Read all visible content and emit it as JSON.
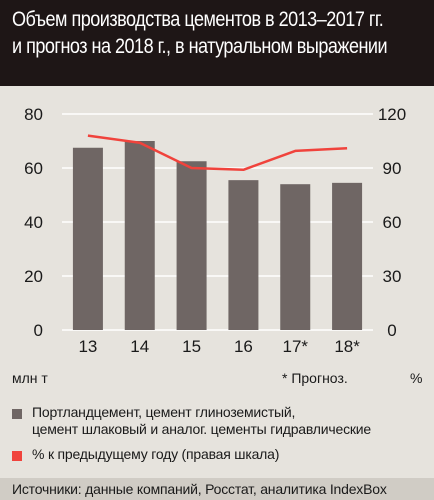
{
  "title_lines": [
    "Объем производства цементов в 2013–2017 гг.",
    "и прогноз на 2018 г., в натуральном выражении"
  ],
  "colors": {
    "bar": "#6f6664",
    "line": "#f0433c",
    "grid": "#ffffff",
    "text": "#1a1a1a"
  },
  "chart_data": {
    "type": "bar",
    "categories": [
      "13",
      "14",
      "15",
      "16",
      "17*",
      "18*"
    ],
    "series": [
      {
        "name": "Портландцемент, цемент глиноземистый, цемент шлаковый и аналог. цементы гидравлические",
        "type": "bar",
        "axis": "left",
        "values": [
          67.5,
          70,
          62.5,
          55.5,
          54,
          54.5
        ]
      },
      {
        "name": "% к предыдущему году (правая шкала)",
        "type": "line",
        "axis": "right",
        "values": [
          108,
          104,
          90,
          89,
          99.5,
          101
        ]
      }
    ],
    "ylabel": "млн т",
    "y2label": "%",
    "ylim": [
      0,
      80
    ],
    "y2lim": [
      0,
      120
    ],
    "yticks": [
      0,
      20,
      40,
      60,
      80
    ],
    "y2ticks": [
      0,
      30,
      60,
      90,
      120
    ],
    "note": "* Прогноз.",
    "grid": true
  },
  "legend": {
    "bar_label_lines": [
      "Портландцемент, цемент глиноземистый,",
      "цемент шлаковый и аналог. цементы гидравлические"
    ],
    "line_label": "% к предыдущему году (правая шкала)"
  },
  "source": "Источники: данные компаний, Росстат, аналитика IndexBox"
}
